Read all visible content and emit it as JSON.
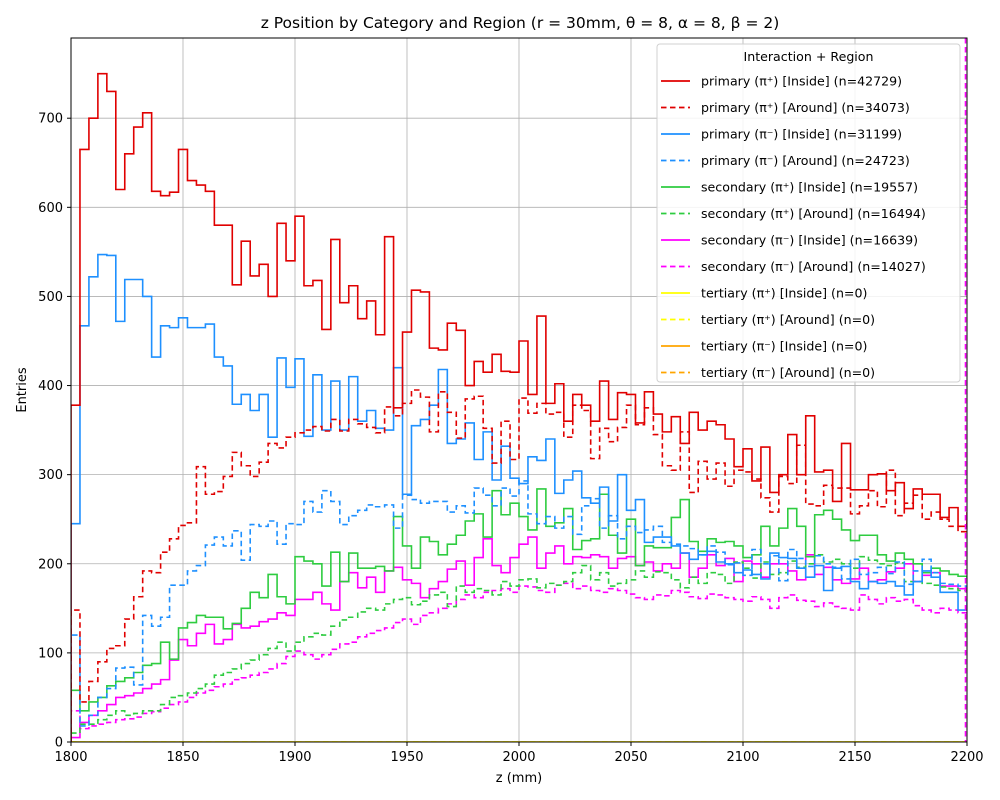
{
  "chart_data": {
    "type": "step-histogram",
    "title": "z Position by Category and Region (r = 30mm, θ = 8, α = 8, β = 2)",
    "xlabel": "z (mm)",
    "ylabel": "Entries",
    "xlim": [
      1800,
      2200
    ],
    "ylim": [
      0,
      790
    ],
    "grid": true,
    "legend_title": "Interaction + Region",
    "legend_position": "top-right",
    "bin_width": 4,
    "x_ticks": [
      1800,
      1850,
      1900,
      1950,
      2000,
      2050,
      2100,
      2150,
      2200
    ],
    "y_ticks": [
      0,
      100,
      200,
      300,
      400,
      500,
      600,
      700
    ],
    "series": [
      {
        "name": "primary (π⁺) [Inside] (n=42729)",
        "color": "#e00000",
        "dash": "solid",
        "values": [
          378,
          665,
          700,
          750,
          730,
          620,
          660,
          690,
          706,
          618,
          613,
          617,
          665,
          630,
          625,
          618,
          580,
          580,
          513,
          562,
          523,
          536,
          500,
          582,
          540,
          590,
          512,
          518,
          463,
          564,
          493,
          512,
          475,
          495,
          457,
          567,
          375,
          460,
          507,
          505,
          442,
          440,
          470,
          462,
          400,
          427,
          415,
          435,
          416,
          415,
          450,
          390,
          478,
          380,
          402,
          360,
          390,
          378,
          360,
          405,
          362,
          392,
          390,
          358,
          393,
          368,
          348,
          365,
          335,
          370,
          350,
          360,
          356,
          340,
          309,
          329,
          293,
          331,
          280,
          300,
          345,
          300,
          366,
          303,
          305,
          270,
          335,
          283,
          283,
          300,
          301,
          282,
          291,
          262,
          284,
          278,
          278,
          252,
          263,
          242,
          257,
          220,
          240,
          228,
          225,
          235,
          227,
          229,
          228,
          228
        ]
      },
      {
        "name": "primary (π⁺) [Around] (n=34073)",
        "color": "#e00000",
        "dash": "dashed",
        "values": [
          148,
          45,
          68,
          90,
          105,
          108,
          138,
          163,
          192,
          190,
          213,
          228,
          243,
          246,
          309,
          278,
          281,
          298,
          325,
          310,
          298,
          314,
          335,
          330,
          342,
          347,
          350,
          354,
          349,
          362,
          349,
          362,
          357,
          353,
          347,
          376,
          366,
          380,
          395,
          387,
          348,
          393,
          370,
          341,
          385,
          388,
          352,
          313,
          360,
          317,
          386,
          369,
          380,
          368,
          370,
          342,
          378,
          372,
          318,
          352,
          337,
          353,
          378,
          356,
          375,
          345,
          310,
          305,
          348,
          280,
          315,
          295,
          313,
          287,
          305,
          303,
          295,
          274,
          258,
          298,
          290,
          333,
          267,
          265,
          288,
          285,
          285,
          256,
          265,
          282,
          264,
          305,
          254,
          268,
          277,
          250,
          258,
          250,
          242,
          236,
          245,
          233,
          232,
          240,
          208,
          230,
          225,
          230,
          310,
          230
        ]
      },
      {
        "name": "primary (π⁻) [Inside] (n=31199)",
        "color": "#1e90ff",
        "dash": "solid",
        "values": [
          245,
          467,
          522,
          547,
          546,
          472,
          519,
          519,
          500,
          432,
          467,
          465,
          476,
          465,
          465,
          469,
          432,
          422,
          379,
          390,
          372,
          390,
          342,
          431,
          398,
          430,
          343,
          412,
          350,
          405,
          350,
          410,
          360,
          372,
          352,
          350,
          420,
          278,
          355,
          362,
          378,
          418,
          335,
          340,
          358,
          317,
          348,
          294,
          332,
          296,
          290,
          320,
          316,
          340,
          279,
          294,
          304,
          274,
          268,
          286,
          248,
          300,
          260,
          272,
          224,
          230,
          230,
          220,
          212,
          205,
          210,
          214,
          202,
          200,
          190,
          193,
          188,
          183,
          212,
          207,
          206,
          195,
          185,
          198,
          170,
          195,
          197,
          180,
          172,
          180,
          178,
          180,
          175,
          165,
          180,
          192,
          185,
          168,
          168,
          148,
          160,
          152,
          155,
          150,
          150,
          148,
          146,
          144,
          160,
          150
        ]
      },
      {
        "name": "primary (π⁻) [Around] (n=24723)",
        "color": "#1e90ff",
        "dash": "dashed",
        "values": [
          120,
          18,
          30,
          50,
          60,
          83,
          84,
          64,
          142,
          130,
          140,
          176,
          176,
          192,
          198,
          221,
          230,
          220,
          237,
          204,
          244,
          242,
          248,
          222,
          245,
          244,
          270,
          258,
          282,
          270,
          244,
          254,
          260,
          266,
          264,
          266,
          240,
          277,
          272,
          268,
          270,
          270,
          258,
          265,
          257,
          285,
          277,
          265,
          285,
          276,
          293,
          256,
          245,
          253,
          240,
          253,
          233,
          265,
          273,
          240,
          254,
          228,
          242,
          235,
          238,
          242,
          224,
          222,
          220,
          217,
          210,
          220,
          213,
          199,
          201,
          187,
          216,
          200,
          209,
          181,
          216,
          206,
          197,
          209,
          200,
          196,
          183,
          205,
          188,
          190,
          196,
          189,
          202,
          177,
          192,
          205,
          190,
          178,
          177,
          175,
          170,
          168,
          166,
          164,
          162,
          160,
          158,
          156,
          154,
          92
        ]
      },
      {
        "name": "secondary (π⁺) [Inside] (n=19557)",
        "color": "#2ecc40",
        "dash": "solid",
        "values": [
          58,
          35,
          45,
          50,
          63,
          68,
          72,
          78,
          86,
          88,
          112,
          93,
          128,
          134,
          142,
          140,
          140,
          127,
          133,
          150,
          168,
          162,
          188,
          163,
          155,
          208,
          203,
          200,
          175,
          213,
          180,
          212,
          195,
          195,
          197,
          192,
          253,
          220,
          195,
          230,
          225,
          210,
          222,
          232,
          248,
          256,
          230,
          282,
          255,
          268,
          253,
          238,
          284,
          242,
          246,
          262,
          216,
          226,
          228,
          278,
          232,
          212,
          250,
          198,
          220,
          218,
          218,
          252,
          272,
          225,
          214,
          228,
          224,
          225,
          220,
          207,
          210,
          242,
          220,
          240,
          262,
          242,
          208,
          255,
          260,
          250,
          238,
          226,
          232,
          232,
          210,
          203,
          212,
          205,
          200,
          190,
          195,
          192,
          188,
          186,
          184,
          182,
          180,
          178,
          176,
          174,
          172,
          170,
          168,
          100
        ]
      },
      {
        "name": "secondary (π⁺) [Around] (n=16494)",
        "color": "#2ecc40",
        "dash": "dashed",
        "values": [
          10,
          20,
          20,
          25,
          30,
          35,
          30,
          32,
          35,
          35,
          42,
          50,
          52,
          55,
          60,
          65,
          75,
          78,
          82,
          88,
          92,
          98,
          105,
          112,
          102,
          112,
          118,
          122,
          120,
          130,
          137,
          140,
          146,
          150,
          148,
          155,
          160,
          162,
          154,
          158,
          165,
          168,
          152,
          175,
          168,
          172,
          170,
          165,
          180,
          175,
          182,
          183,
          173,
          178,
          176,
          180,
          190,
          198,
          182,
          190,
          175,
          178,
          182,
          192,
          185,
          191,
          190,
          182,
          173,
          185,
          178,
          190,
          188,
          178,
          202,
          195,
          184,
          202,
          188,
          190,
          203,
          196,
          200,
          210,
          202,
          205,
          200,
          195,
          208,
          204,
          200,
          198,
          201,
          180,
          180,
          178,
          176,
          174,
          172,
          170,
          168,
          166,
          164,
          162,
          160,
          158,
          156,
          154,
          152,
          98
        ]
      },
      {
        "name": "secondary (π⁻) [Inside] (n=16639)",
        "color": "#ff00ff",
        "dash": "solid",
        "values": [
          5,
          22,
          30,
          35,
          42,
          50,
          52,
          55,
          60,
          65,
          70,
          92,
          115,
          108,
          122,
          132,
          110,
          115,
          132,
          128,
          130,
          135,
          138,
          145,
          142,
          160,
          160,
          168,
          155,
          148,
          180,
          190,
          173,
          185,
          168,
          192,
          196,
          182,
          178,
          162,
          172,
          180,
          194,
          203,
          176,
          207,
          228,
          198,
          190,
          207,
          222,
          230,
          195,
          212,
          220,
          200,
          208,
          207,
          210,
          208,
          195,
          206,
          208,
          198,
          202,
          192,
          200,
          195,
          212,
          185,
          195,
          210,
          198,
          206,
          180,
          203,
          200,
          185,
          200,
          200,
          192,
          182,
          210,
          188,
          196,
          182,
          178,
          183,
          195,
          180,
          182,
          191,
          195,
          200,
          180,
          187,
          190,
          175,
          175,
          172,
          170,
          168,
          166,
          164,
          162,
          160,
          158,
          156,
          154,
          70
        ]
      },
      {
        "name": "secondary (π⁻) [Around] (n=14027)",
        "color": "#ff00ff",
        "dash": "dashed",
        "values": [
          35,
          15,
          18,
          20,
          22,
          25,
          26,
          28,
          32,
          34,
          38,
          42,
          45,
          50,
          55,
          58,
          62,
          65,
          70,
          72,
          75,
          78,
          82,
          88,
          96,
          102,
          98,
          93,
          98,
          104,
          110,
          112,
          118,
          122,
          125,
          128,
          134,
          138,
          132,
          142,
          145,
          150,
          155,
          160,
          165,
          162,
          168,
          170,
          172,
          168,
          175,
          174,
          170,
          168,
          176,
          178,
          172,
          175,
          170,
          168,
          172,
          170,
          166,
          162,
          160,
          165,
          164,
          170,
          168,
          163,
          161,
          166,
          165,
          162,
          160,
          158,
          163,
          160,
          150,
          162,
          165,
          159,
          158,
          152,
          156,
          152,
          150,
          148,
          165,
          160,
          155,
          162,
          158,
          160,
          153,
          148,
          145,
          150,
          148,
          145,
          142,
          140,
          138,
          136,
          134,
          132,
          130,
          128,
          126,
          120
        ]
      },
      {
        "name": "tertiary (π⁺) [Inside] (n=0)",
        "color": "#ffff00",
        "dash": "solid",
        "values": []
      },
      {
        "name": "tertiary (π⁺) [Around] (n=0)",
        "color": "#ffff00",
        "dash": "dashed",
        "values": []
      },
      {
        "name": "tertiary (π⁻) [Inside] (n=0)",
        "color": "#ffa500",
        "dash": "solid",
        "values": []
      },
      {
        "name": "tertiary (π⁻) [Around] (n=0)",
        "color": "#ffa500",
        "dash": "dashed",
        "values": []
      }
    ]
  }
}
